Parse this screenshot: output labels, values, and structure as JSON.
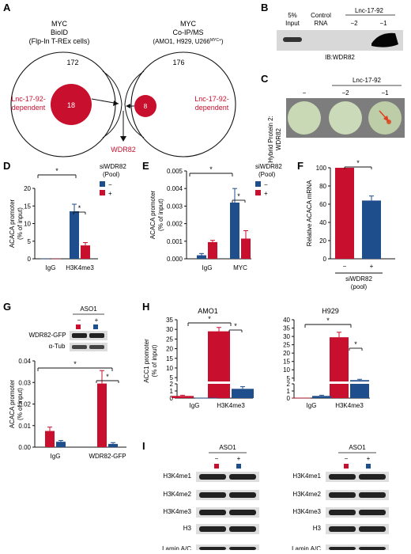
{
  "panels": {
    "A": "A",
    "B": "B",
    "C": "C",
    "D": "D",
    "E": "E",
    "F": "F",
    "G": "G",
    "H": "H",
    "I": "I"
  },
  "colors": {
    "red": "#c8102e",
    "blue": "#1f4e8c"
  },
  "panelA": {
    "left_title_1": "MYC",
    "left_title_2": "BioID",
    "left_title_3": "(Flp-In T-REx cells)",
    "left_count": "172",
    "left_inner": "18",
    "left_label_1": "Lnc-17-92-",
    "left_label_2": "dependent",
    "right_title_1": "MYC",
    "right_title_2": "Co-IP/MS",
    "right_title_3": "(AMO1, H929, U266",
    "right_title_sup": "MYC+",
    "right_title_4": ")",
    "right_count": "176",
    "right_inner": "8",
    "right_label_1": "Lnc-17-92-",
    "right_label_2": "dependent",
    "intersection": "WDR82"
  },
  "panelB": {
    "lane1_1": "5%",
    "lane1_2": "Input",
    "lane2_1": "Control",
    "lane2_2": "RNA",
    "group": "Lnc-17-92",
    "lane3": "−2",
    "lane4": "−1",
    "blot": "IB:WDR82"
  },
  "panelC": {
    "ylabel_1": "Hybrid Protein 2:",
    "ylabel_2": "WDR82",
    "group": "Lnc-17-92",
    "col1": "−",
    "col2": "−2",
    "col3": "−1"
  },
  "legend_siWDR82": {
    "title_1": "siWDR82",
    "title_2": "(Pool)",
    "minus": "−",
    "plus": "+"
  },
  "sig": "*",
  "chart_data": [
    {
      "panel": "D",
      "type": "bar",
      "ylabel": "ACACA promoter\n(% of input)",
      "ylim": [
        0,
        20
      ],
      "yticks": [
        "0",
        "5",
        "10",
        "15",
        "20"
      ],
      "categories": [
        "IgG",
        "H3K4me3"
      ],
      "series": [
        {
          "name": "−",
          "values": [
            0.05,
            13.5
          ],
          "err": [
            0,
            2.0
          ]
        },
        {
          "name": "+",
          "values": [
            0.05,
            3.8
          ],
          "err": [
            0,
            0.8
          ]
        }
      ]
    },
    {
      "panel": "E",
      "type": "bar",
      "ylabel": "ACACA promoter\n(% of input)",
      "ylim": [
        0,
        0.005
      ],
      "yticks": [
        "0.000",
        "0.001",
        "0.002",
        "0.003",
        "0.004",
        "0.005"
      ],
      "categories": [
        "IgG",
        "MYC"
      ],
      "series": [
        {
          "name": "−",
          "values": [
            0.0002,
            0.0032
          ],
          "err": [
            0.0001,
            0.0008
          ]
        },
        {
          "name": "+",
          "values": [
            0.00095,
            0.00115
          ],
          "err": [
            0.0001,
            0.00045
          ]
        }
      ]
    },
    {
      "panel": "F",
      "type": "bar",
      "ylabel": "Relative ACACA mRNA",
      "ylim": [
        0,
        100
      ],
      "yticks": [
        "0",
        "20",
        "40",
        "60",
        "80",
        "100"
      ],
      "categories": [
        "−",
        "+"
      ],
      "xlabel_1": "siWDR82",
      "xlabel_2": "(pool)",
      "values": [
        100,
        64
      ],
      "err": [
        0,
        5
      ]
    },
    {
      "panel": "G",
      "type": "bar",
      "ylabel": "ACACA promoter\n(% of input)",
      "ylim": [
        0,
        0.04
      ],
      "yticks": [
        "0.00",
        "0.01",
        "0.02",
        "0.03",
        "0.04"
      ],
      "categories": [
        "IgG",
        "WDR82-GFP"
      ],
      "series": [
        {
          "name": "−",
          "values": [
            0.0075,
            0.0295
          ],
          "err": [
            0.0018,
            0.006
          ]
        },
        {
          "name": "+",
          "values": [
            0.0025,
            0.0015
          ],
          "err": [
            0.0006,
            0.0006
          ]
        }
      ]
    },
    {
      "panel": "H",
      "subtitle": "AMO1",
      "type": "bar",
      "ylabel": "ACC1 promoter\n(% of input)",
      "yticks_top": [
        "5",
        "10",
        "15",
        "20",
        "25",
        "30",
        "35"
      ],
      "yticks_bottom": [
        "0",
        "1",
        "2"
      ],
      "categories": [
        "IgG",
        "H3K4me3"
      ],
      "series": [
        {
          "name": "−",
          "values": [
            0.3,
            29
          ],
          "err": [
            0.1,
            2
          ]
        },
        {
          "name": "+",
          "values": [
            0.05,
            1.3
          ],
          "err": [
            0,
            0.3
          ]
        }
      ]
    },
    {
      "panel": "H",
      "subtitle": "H929",
      "type": "bar",
      "yticks_top": [
        "5",
        "10",
        "15",
        "20",
        "25",
        "30",
        "35",
        "40"
      ],
      "yticks_bottom": [
        "0",
        "1",
        "2"
      ],
      "categories": [
        "IgG",
        "H3K4me3"
      ],
      "series": [
        {
          "name": "−",
          "values": [
            0.05,
            29.5
          ],
          "err": [
            0,
            3
          ]
        },
        {
          "name": "+",
          "values": [
            0.3,
            3.8
          ],
          "err": [
            0.1,
            0.5
          ]
        }
      ]
    }
  ],
  "panelG_blot": {
    "title": "ASO1",
    "minus": "−",
    "plus": "+",
    "row1": "WDR82-GFP",
    "row2": "α-Tub"
  },
  "panelI": {
    "title": "ASO1",
    "minus": "−",
    "plus": "+",
    "rows": [
      "H3K4me1",
      "H3K4me2",
      "H3K4me3",
      "H3",
      "Lamin A/C"
    ]
  }
}
